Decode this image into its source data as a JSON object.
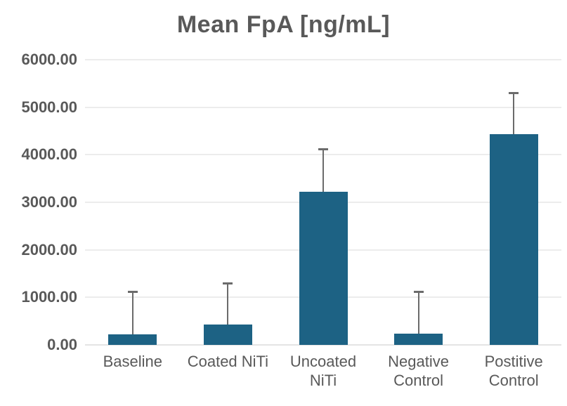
{
  "chart_data": {
    "type": "bar",
    "title": "Mean FpA [ng/mL]",
    "categories": [
      "Baseline",
      "Coated NiTi",
      "Uncoated NiTi",
      "Negative Control",
      "Postitive Control"
    ],
    "category_label_lines": [
      [
        "Baseline"
      ],
      [
        "Coated NiTi"
      ],
      [
        "Uncoated",
        "NiTi"
      ],
      [
        "Negative",
        "Control"
      ],
      [
        "Postitive",
        "Control"
      ]
    ],
    "values": [
      220,
      430,
      3220,
      240,
      4430
    ],
    "error_upper": [
      910,
      870,
      900,
      890,
      870
    ],
    "error_bar_tops": [
      1130,
      1300,
      4120,
      1130,
      5300
    ],
    "y_tick_labels": [
      "0.00",
      "1000.00",
      "2000.00",
      "3000.00",
      "4000.00",
      "5000.00",
      "6000.00"
    ],
    "y_tick_values": [
      0,
      1000,
      2000,
      3000,
      4000,
      5000,
      6000
    ],
    "ylim": [
      0,
      6000
    ],
    "xlabel": "",
    "ylabel": "",
    "grid": "horizontal-only",
    "legend": "none",
    "colors": {
      "bar": "#1d6284",
      "error_bar": "#6b6b6b",
      "text": "#595959",
      "gridline": "#ececec",
      "axis_line": "#e4e4e4",
      "background": "#ffffff"
    }
  }
}
